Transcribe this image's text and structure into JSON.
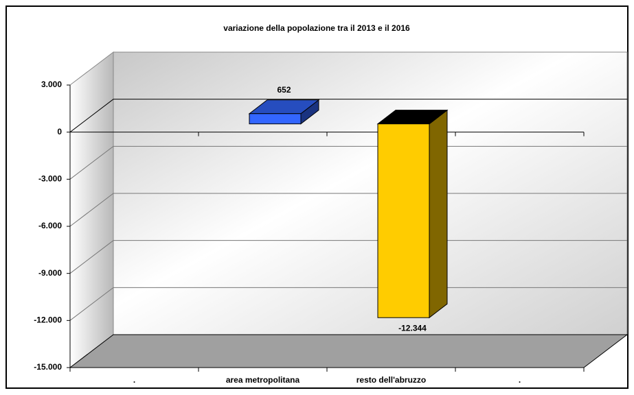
{
  "chart_data": {
    "type": "bar3d",
    "title": "variazione della popolazione tra il 2013 e il 2016",
    "categories": [
      ".",
      "area metropolitana",
      "resto dell'abruzzo",
      "."
    ],
    "values": [
      null,
      652,
      -12344,
      null
    ],
    "value_labels": [
      null,
      "652",
      "-12.344",
      null
    ],
    "colors": [
      null,
      "#3366ff",
      "#ffcc00",
      null
    ],
    "ylim": [
      -15000,
      3000
    ],
    "yticks": [
      {
        "value": 3000,
        "label": "3.000"
      },
      0,
      {
        "value": -3000,
        "label": "-3.000"
      },
      {
        "value": -6000,
        "label": "-6.000"
      },
      {
        "value": -9000,
        "label": "-9.000"
      },
      {
        "value": -12000,
        "label": "-12.000"
      },
      {
        "value": -15000,
        "label": "-15.000"
      }
    ],
    "grid": true
  }
}
